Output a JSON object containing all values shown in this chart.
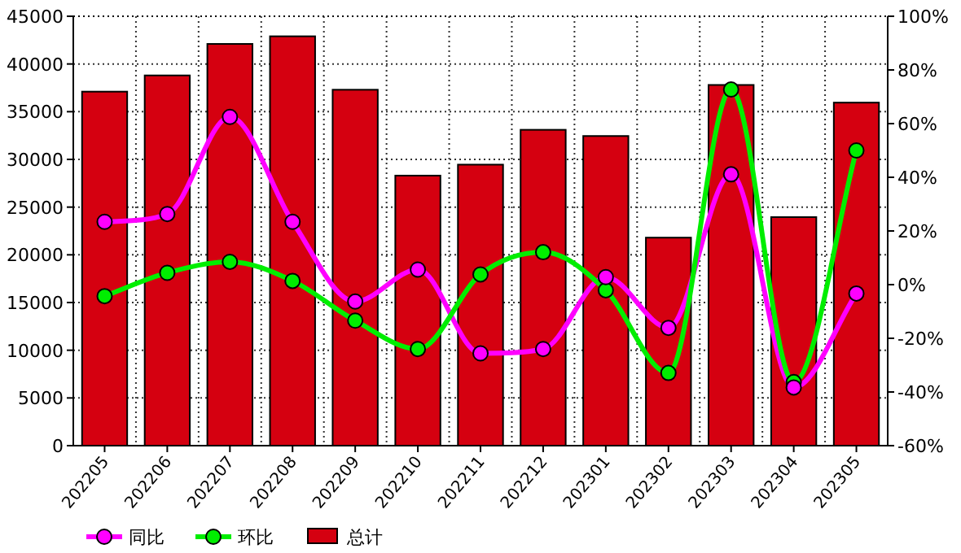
{
  "chart_data": {
    "type": "bar",
    "categories": [
      "202205",
      "202206",
      "202207",
      "202208",
      "202209",
      "202210",
      "202211",
      "202212",
      "202301",
      "202302",
      "202303",
      "202304",
      "202305"
    ],
    "series": [
      {
        "name": "同比",
        "type": "line",
        "axis": "y2",
        "color": "#ff00ff",
        "values": [
          23.4,
          26.3,
          62.5,
          23.4,
          -6.3,
          5.6,
          -25.6,
          -24.0,
          2.8,
          -16.1,
          41.1,
          -38.3,
          -3.3
        ]
      },
      {
        "name": "环比",
        "type": "line",
        "axis": "y2",
        "color": "#00ee00",
        "values": [
          -4.3,
          4.4,
          8.5,
          1.4,
          -13.4,
          -24.0,
          3.8,
          12.1,
          -2.1,
          -32.9,
          72.7,
          -36.3,
          50.0
        ]
      },
      {
        "name": "总计",
        "color": "#d50010",
        "values": [
          37100,
          38800,
          42100,
          42900,
          37300,
          28300,
          29450,
          33100,
          32450,
          21800,
          37800,
          23950,
          35950
        ]
      }
    ],
    "ylim": [
      0,
      45000
    ],
    "yticks": [
      0,
      5000,
      10000,
      15000,
      20000,
      25000,
      30000,
      35000,
      40000,
      45000
    ],
    "y2lim": [
      -60,
      100
    ],
    "y2ticks": [
      {
        "value": -60,
        "label": "-60%"
      },
      {
        "value": -40,
        "label": "-40%"
      },
      {
        "value": -20,
        "label": "-20%"
      },
      {
        "value": 0,
        "label": "0%"
      },
      {
        "value": 20,
        "label": "20%"
      },
      {
        "value": 40,
        "label": "40%"
      },
      {
        "value": 60,
        "label": "60%"
      },
      {
        "value": 80,
        "label": "80%"
      },
      {
        "value": 100,
        "label": "100%"
      }
    ],
    "grid": true,
    "legend": "bottom",
    "marker": "circle"
  }
}
